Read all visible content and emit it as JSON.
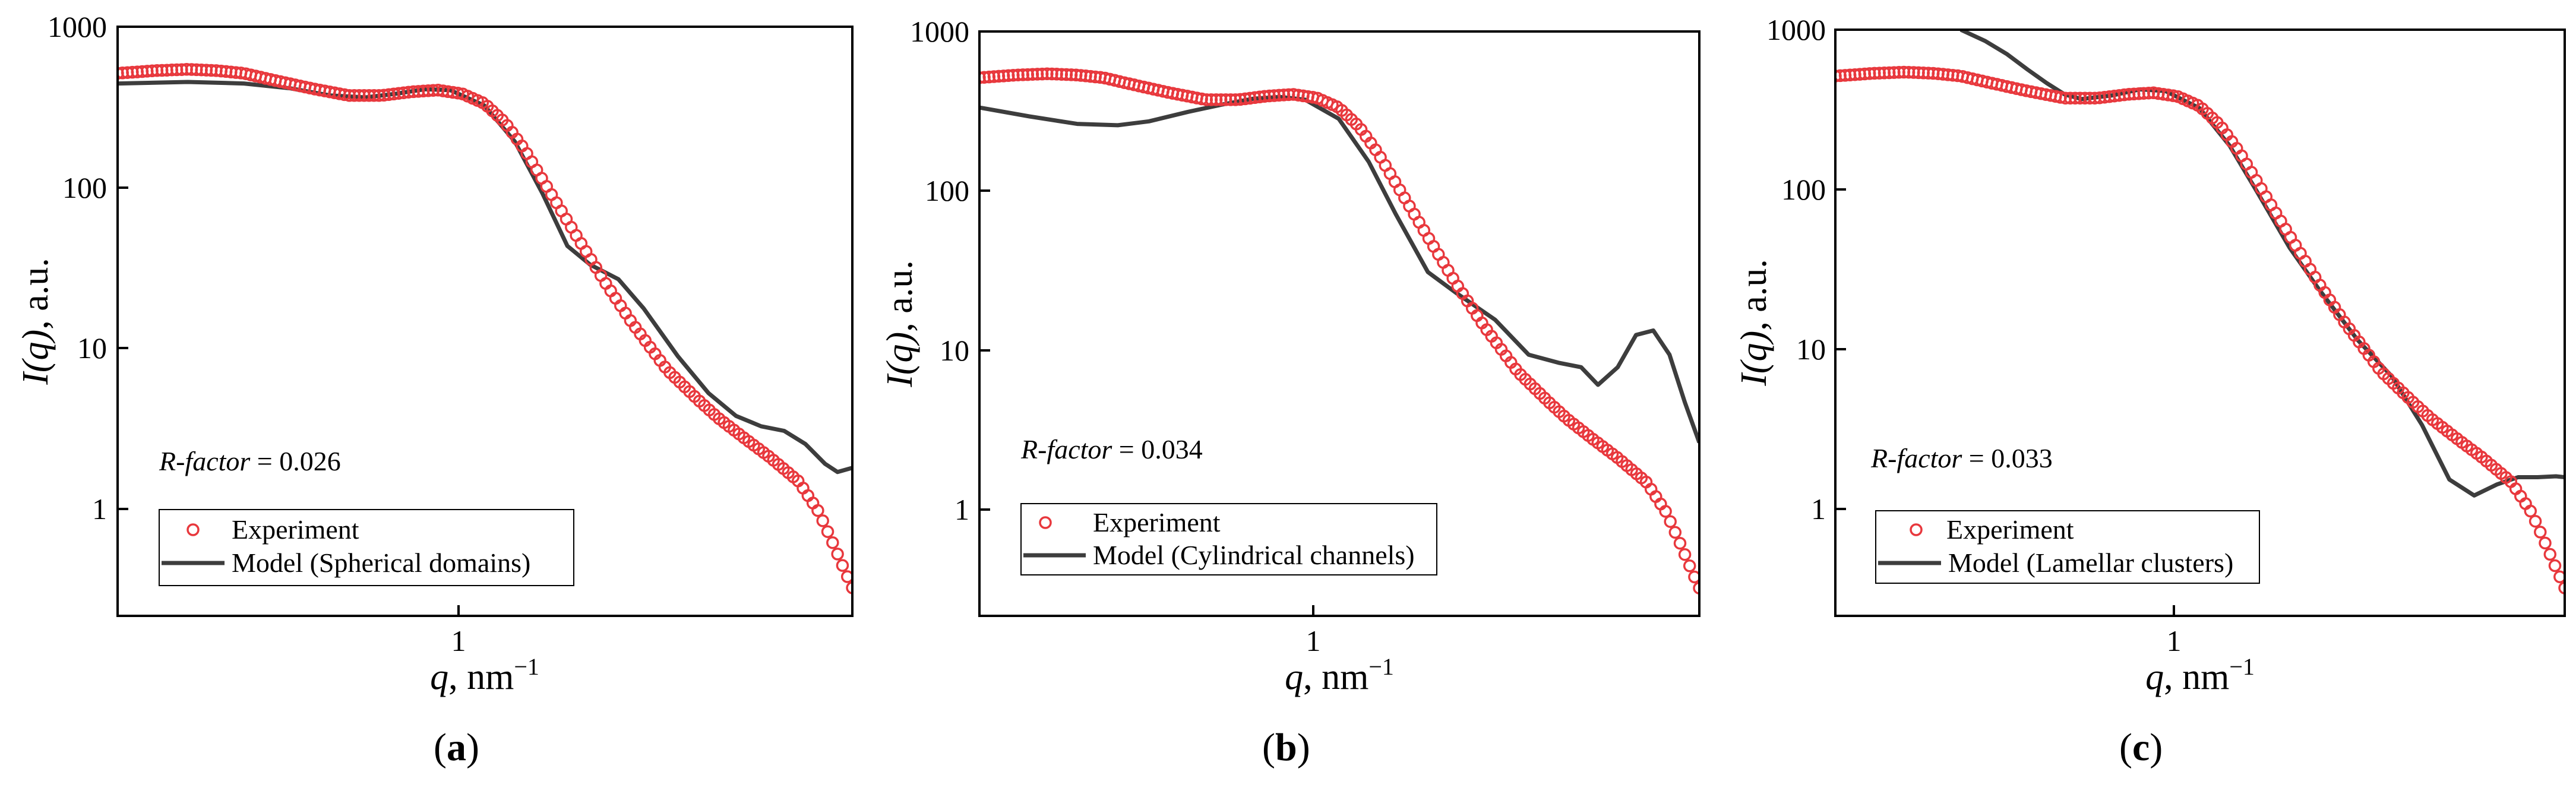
{
  "figure": {
    "panel_letter_a": "a",
    "panel_letter_b": "b",
    "panel_letter_c": "c",
    "ylabel_sym": "I(q)",
    "ylabel_unit": ", a.u.",
    "xlabel_sym": "q",
    "xlabel_unit": ", nm",
    "xlabel_exp": "−1",
    "rfactor_label": "R-factor",
    "rfactor_a": " = 0.026",
    "rfactor_b": " = 0.034",
    "rfactor_c": " = 0.033",
    "legend_experiment": "Experiment",
    "legend_model_a": "Model (Spherical domains)",
    "legend_model_b": "Model (Cylindrical channels)",
    "legend_model_c": "Model (Lamellar clusters)",
    "ytick_1000": "1000",
    "ytick_100": "100",
    "ytick_10": "10",
    "ytick_1": "1",
    "xtick_1": "1"
  },
  "chart_data": [
    {
      "type": "scatter",
      "panel": "a",
      "xscale": "log",
      "yscale": "log",
      "xlim": [
        0.35,
        4.85
      ],
      "ylim": [
        0.2,
        1000
      ],
      "xlabel": "q, nm−1",
      "ylabel": "I(q), a.u.",
      "annotation": "R-factor = 0.026",
      "legend_position": "bottom-left",
      "colors": {
        "experiment": "#e8383d",
        "model": "#3d3d3d"
      },
      "series": [
        {
          "name": "Experiment",
          "x": [
            0.35,
            0.4,
            0.45,
            0.5,
            0.55,
            0.6,
            0.7,
            0.8,
            0.9,
            1.0,
            1.1,
            1.2,
            1.3,
            1.4,
            1.5,
            1.6,
            1.8,
            2.0,
            2.2,
            2.5,
            2.8,
            3.0,
            3.3,
            3.6,
            4.0,
            4.3,
            4.5,
            4.7,
            4.85
          ],
          "y": [
            510,
            530,
            540,
            530,
            510,
            470,
            410,
            370,
            370,
            390,
            400,
            380,
            330,
            250,
            170,
            110,
            50,
            25,
            14,
            7,
            4.5,
            3.5,
            2.6,
            2,
            1.4,
            0.9,
            0.6,
            0.4,
            0.3
          ]
        },
        {
          "name": "Model (Spherical domains)",
          "x": [
            0.35,
            0.45,
            0.55,
            0.65,
            0.75,
            0.85,
            0.95,
            1.05,
            1.15,
            1.3,
            1.45,
            1.6,
            1.75,
            1.9,
            2.1,
            2.3,
            2.6,
            2.9,
            3.2,
            3.5,
            3.8,
            4.1,
            4.4,
            4.6,
            4.85
          ],
          "y": [
            440,
            450,
            440,
            410,
            370,
            360,
            380,
            405,
            400,
            320,
            190,
            90,
            42,
            32,
            26,
            17,
            8.5,
            5,
            3.6,
            3.1,
            2.9,
            2.4,
            1.8,
            1.6,
            1.7
          ]
        }
      ]
    },
    {
      "type": "scatter",
      "panel": "b",
      "xscale": "log",
      "yscale": "log",
      "xlim": [
        0.35,
        4.85
      ],
      "ylim": [
        0.2,
        1000
      ],
      "xlabel": "q, nm−1",
      "ylabel": "I(q), a.u.",
      "annotation": "R-factor = 0.034",
      "legend_position": "bottom-left",
      "colors": {
        "experiment": "#e8383d",
        "model": "#3d3d3d"
      },
      "series": [
        {
          "name": "Experiment",
          "x": [
            0.35,
            0.4,
            0.45,
            0.5,
            0.55,
            0.6,
            0.7,
            0.8,
            0.9,
            1.0,
            1.1,
            1.2,
            1.3,
            1.4,
            1.5,
            1.6,
            1.8,
            2.0,
            2.2,
            2.5,
            2.8,
            3.0,
            3.3,
            3.6,
            4.0,
            4.3,
            4.5,
            4.7,
            4.85
          ],
          "y": [
            510,
            530,
            540,
            530,
            510,
            470,
            410,
            370,
            370,
            390,
            400,
            380,
            330,
            250,
            170,
            110,
            50,
            25,
            14,
            7,
            4.5,
            3.5,
            2.6,
            2,
            1.4,
            0.9,
            0.6,
            0.4,
            0.3
          ]
        },
        {
          "name": "Model (Cylindrical channels)",
          "x": [
            0.35,
            0.42,
            0.5,
            0.58,
            0.65,
            0.75,
            0.85,
            0.95,
            1.05,
            1.15,
            1.3,
            1.45,
            1.6,
            1.8,
            2.0,
            2.3,
            2.6,
            2.9,
            3.15,
            3.35,
            3.6,
            3.85,
            4.1,
            4.35,
            4.6,
            4.85
          ],
          "y": [
            330,
            290,
            260,
            255,
            270,
            310,
            345,
            375,
            385,
            370,
            280,
            150,
            70,
            30,
            22,
            15,
            9,
            8,
            7.5,
            5.8,
            7.5,
            12,
            12.8,
            9,
            4.5,
            2.5
          ]
        }
      ]
    },
    {
      "type": "scatter",
      "panel": "c",
      "xscale": "log",
      "yscale": "log",
      "xlim": [
        0.35,
        4.85
      ],
      "ylim": [
        0.2,
        1000
      ],
      "xlabel": "q, nm−1",
      "ylabel": "I(q), a.u.",
      "annotation": "R-factor = 0.033",
      "legend_position": "bottom-left",
      "colors": {
        "experiment": "#e8383d",
        "model": "#3d3d3d"
      },
      "series": [
        {
          "name": "Experiment",
          "x": [
            0.35,
            0.4,
            0.45,
            0.5,
            0.55,
            0.6,
            0.7,
            0.8,
            0.9,
            1.0,
            1.1,
            1.2,
            1.3,
            1.4,
            1.5,
            1.6,
            1.8,
            2.0,
            2.2,
            2.5,
            2.8,
            3.0,
            3.3,
            3.6,
            4.0,
            4.3,
            4.5,
            4.7,
            4.85
          ],
          "y": [
            510,
            530,
            540,
            530,
            510,
            470,
            410,
            370,
            370,
            390,
            400,
            380,
            330,
            250,
            170,
            110,
            50,
            25,
            14,
            7,
            4.5,
            3.5,
            2.6,
            2,
            1.4,
            0.9,
            0.6,
            0.4,
            0.3
          ]
        },
        {
          "name": "Model (Lamellar clusters)",
          "x": [
            0.55,
            0.6,
            0.65,
            0.7,
            0.75,
            0.8,
            0.85,
            0.95,
            1.05,
            1.15,
            1.3,
            1.45,
            1.6,
            1.8,
            2.0,
            2.3,
            2.6,
            2.9,
            3.2,
            3.5,
            3.8,
            4.1,
            4.4,
            4.7,
            4.85
          ],
          "y": [
            1000,
            850,
            700,
            560,
            460,
            390,
            365,
            385,
            420,
            410,
            320,
            185,
            95,
            42,
            23,
            11,
            6.5,
            3.2,
            1.45,
            1.15,
            1.35,
            1.5,
            1.5,
            1.52,
            1.5
          ]
        }
      ]
    }
  ]
}
